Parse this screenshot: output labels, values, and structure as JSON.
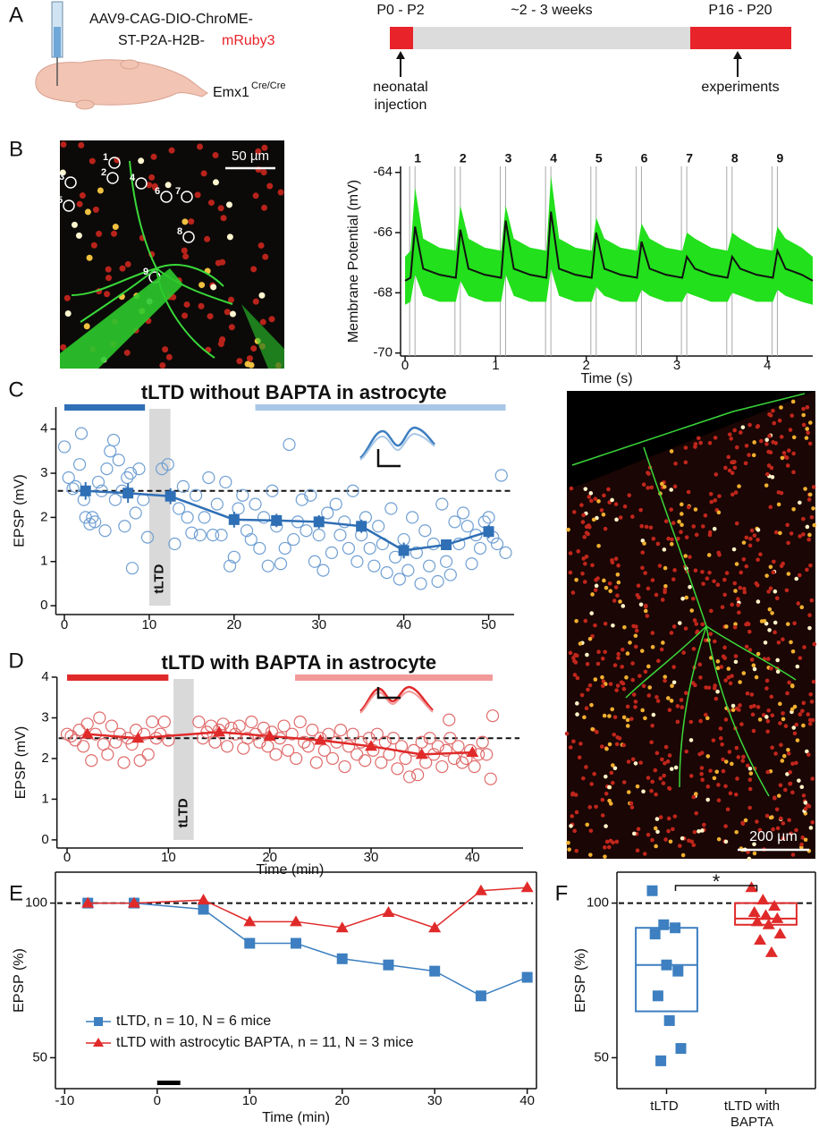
{
  "panel_labels": [
    "A",
    "B",
    "C",
    "D",
    "E",
    "F"
  ],
  "panel_a": {
    "virus_lines": [
      "AAV9-CAG-DIO-ChroME-",
      "ST-P2A-H2B-"
    ],
    "reporter": "mRuby3",
    "mouse_line": "Emx1",
    "mouse_line_sup": "Cre/Cre",
    "timeline": [
      {
        "label": "P0 - P2",
        "color": "#e8232a"
      },
      {
        "label": "~2 - 3 weeks",
        "color": "#dcdcdc"
      },
      {
        "label": "P16 - P20",
        "color": "#e8232a"
      }
    ],
    "arrow_left": [
      "neonatal",
      "injection"
    ],
    "arrow_right": [
      "experiments"
    ]
  },
  "image_b": {
    "scale_bar": "50 µm",
    "cell_labels": [
      "1",
      "2",
      "3",
      "4",
      "5",
      "6",
      "7",
      "8",
      "9"
    ]
  },
  "image_c": {
    "scale_bar": "200 µm"
  },
  "chart_data": [
    {
      "type": "line",
      "ylabel": "Membrane Potential (mV)",
      "xlabel": "Time (s)",
      "xlim": [
        -0.05,
        4.5
      ],
      "xticks": [
        0,
        1,
        2,
        3,
        4
      ],
      "ylim": [
        -70.1,
        -63.8
      ],
      "yticks": [
        -64,
        -66,
        -68,
        -70
      ],
      "x": [
        0,
        0.06,
        0.11,
        0.2,
        0.38,
        0.56,
        0.61,
        0.7,
        0.88,
        1.06,
        1.11,
        1.2,
        1.38,
        1.56,
        1.61,
        1.7,
        1.88,
        2.06,
        2.11,
        2.2,
        2.38,
        2.56,
        2.61,
        2.7,
        2.88,
        3.06,
        3.11,
        3.2,
        3.38,
        3.56,
        3.61,
        3.7,
        3.88,
        4.06,
        4.11,
        4.2,
        4.38,
        4.5
      ],
      "series": [
        {
          "color": "#22e01c",
          "upper": [
            -66.8,
            -66.6,
            -64.5,
            -66.2,
            -66.5,
            -66.6,
            -65.1,
            -66.2,
            -66.5,
            -66.6,
            -65.1,
            -66.2,
            -66.5,
            -66.6,
            -64.1,
            -66.2,
            -66.5,
            -66.6,
            -65.5,
            -66.2,
            -66.5,
            -66.6,
            -65.7,
            -66.2,
            -66.5,
            -66.6,
            -66.0,
            -66.2,
            -66.5,
            -66.6,
            -66.0,
            -66.2,
            -66.5,
            -66.6,
            -65.8,
            -66.2,
            -66.5,
            -66.8
          ],
          "lower": [
            -68.4,
            -68.3,
            -67.4,
            -68.1,
            -68.3,
            -68.3,
            -67.6,
            -68.1,
            -68.3,
            -68.3,
            -67.4,
            -68.1,
            -68.3,
            -68.3,
            -67.2,
            -68.1,
            -68.3,
            -68.3,
            -67.8,
            -68.1,
            -68.3,
            -68.3,
            -67.9,
            -68.1,
            -68.3,
            -68.3,
            -68.0,
            -68.1,
            -68.3,
            -68.3,
            -68.0,
            -68.1,
            -68.3,
            -68.3,
            -67.9,
            -68.1,
            -68.3,
            -68.4
          ]
        },
        {
          "color": "#111111",
          "values": [
            -67.6,
            -67.5,
            -65.8,
            -67.2,
            -67.4,
            -67.5,
            -65.9,
            -67.2,
            -67.4,
            -67.5,
            -65.6,
            -67.2,
            -67.4,
            -67.5,
            -65.3,
            -67.2,
            -67.4,
            -67.5,
            -66.0,
            -67.2,
            -67.4,
            -67.5,
            -66.3,
            -67.2,
            -67.4,
            -67.5,
            -66.8,
            -67.2,
            -67.4,
            -67.5,
            -66.8,
            -67.2,
            -67.4,
            -67.5,
            -66.6,
            -67.2,
            -67.4,
            -67.6
          ]
        }
      ],
      "annotations": [
        {
          "x": 0.08,
          "label": "1"
        },
        {
          "x": 0.58,
          "label": "2"
        },
        {
          "x": 1.08,
          "label": "3"
        },
        {
          "x": 1.58,
          "label": "4"
        },
        {
          "x": 2.08,
          "label": "5"
        },
        {
          "x": 2.58,
          "label": "6"
        },
        {
          "x": 3.08,
          "label": "7"
        },
        {
          "x": 3.58,
          "label": "8"
        },
        {
          "x": 4.08,
          "label": "9"
        }
      ]
    },
    {
      "type": "scatter",
      "title": "tLTD without BAPTA in astrocyte",
      "ylabel": "EPSP (mV)",
      "xlim": [
        -1,
        53
      ],
      "xticks": [
        0,
        10,
        20,
        30,
        40,
        50
      ],
      "ylim": [
        -0.2,
        4.5
      ],
      "yticks": [
        0,
        1,
        2,
        3,
        4
      ],
      "hline": 2.6,
      "bars": [
        {
          "x": [
            0,
            9.5
          ],
          "color": "#2f6fb5"
        },
        {
          "x": [
            22.5,
            52
          ],
          "color": "#a9c7e6"
        }
      ],
      "shade": {
        "x": [
          10,
          12.5
        ],
        "label": "tLTD"
      },
      "series": [
        {
          "color": "#6f9fd3",
          "marker": "circle",
          "x": [
            0,
            0.5,
            1,
            1.3,
            1.8,
            2,
            2.3,
            2.5,
            3,
            3.3,
            3.6,
            4,
            4.4,
            4.8,
            5,
            5.4,
            5.8,
            6,
            6.4,
            6.8,
            7.1,
            7.4,
            7.8,
            8,
            8.4,
            8.8,
            9.3,
            9.8,
            11.5,
            12.2,
            13,
            13.5,
            14,
            14.5,
            15,
            15.5,
            16,
            16.5,
            17,
            17.5,
            18,
            18.5,
            19,
            19.5,
            20,
            20.5,
            21,
            21.5,
            22,
            22.5,
            23,
            23.5,
            24,
            24.5,
            25,
            25.5,
            26,
            26.5,
            27,
            27.5,
            28,
            28.5,
            29,
            29.5,
            30,
            30.5,
            31,
            31.5,
            32,
            32.5,
            33,
            33.5,
            34,
            34.5,
            35,
            35.5,
            36,
            36.5,
            37,
            37.5,
            38,
            38.5,
            39,
            39.5,
            40,
            40.5,
            41,
            41.5,
            42,
            42.5,
            43,
            43.5,
            44,
            44.5,
            45,
            45.5,
            46,
            46.5,
            47,
            47.5,
            48,
            48.5,
            49,
            49.5,
            50,
            50.5,
            51,
            51.5,
            52
          ],
          "values": [
            3.6,
            2.9,
            2.65,
            2.7,
            3.2,
            3.9,
            2.4,
            2.0,
            1.85,
            2.0,
            1.9,
            2.8,
            2.6,
            1.7,
            3.1,
            3.5,
            3.75,
            2.4,
            3.3,
            2.6,
            1.8,
            2.9,
            3.0,
            0.85,
            2.1,
            3.1,
            2.4,
            1.55,
            3.1,
            3.2,
            1.4,
            2.2,
            2.7,
            2.0,
            1.65,
            2.5,
            1.6,
            2.0,
            2.9,
            1.6,
            2.3,
            1.6,
            2.8,
            0.9,
            1.1,
            2.2,
            2.5,
            1.7,
            1.5,
            2.3,
            1.3,
            2.0,
            0.9,
            2.6,
            1.8,
            0.95,
            1.3,
            3.65,
            1.5,
            1.9,
            2.4,
            1.7,
            2.5,
            1.0,
            1.6,
            0.8,
            2.1,
            1.2,
            2.3,
            1.6,
            1.9,
            1.3,
            2.6,
            1.0,
            1.6,
            2.0,
            1.3,
            0.9,
            1.8,
            1.4,
            0.75,
            2.2,
            1.1,
            0.6,
            1.5,
            0.8,
            2.0,
            1.2,
            0.5,
            1.7,
            0.9,
            1.4,
            0.55,
            2.3,
            1.0,
            0.7,
            1.9,
            1.4,
            2.1,
            1.8,
            0.95,
            1.6,
            1.3,
            1.9,
            2.0,
            1.55,
            1.4,
            2.95,
            1.2
          ]
        },
        {
          "color": "#2f6fb5",
          "marker": "square",
          "line": true,
          "x": [
            2.5,
            7.5,
            12.5,
            20,
            25,
            30,
            35,
            40,
            45,
            50
          ],
          "values": [
            2.6,
            2.55,
            2.48,
            1.95,
            1.93,
            1.9,
            1.8,
            1.25,
            1.38,
            1.68
          ],
          "errors": [
            0.2,
            0.22,
            0.18,
            0.18,
            0.15,
            0.15,
            0.15,
            0.18,
            0.12,
            0.15
          ]
        }
      ]
    },
    {
      "type": "scatter",
      "title": "tLTD with BAPTA in astrocyte",
      "ylabel": "EPSP (mV)",
      "xlabel": "Time (min)",
      "xlim": [
        -1,
        45
      ],
      "xticks": [
        0,
        10,
        20,
        30,
        40
      ],
      "ylim": [
        -0.2,
        4
      ],
      "yticks": [
        0,
        1,
        2,
        3,
        4
      ],
      "hline": 2.5,
      "bars": [
        {
          "x": [
            0,
            10
          ],
          "color": "#e02a2a"
        },
        {
          "x": [
            22.5,
            42
          ],
          "color": "#f29a9a"
        }
      ],
      "shade": {
        "x": [
          10.5,
          12.5
        ],
        "label": "tLTD"
      },
      "series": [
        {
          "color": "#e06a6a",
          "marker": "circle",
          "x": [
            0,
            0.4,
            0.8,
            1.2,
            1.6,
            2,
            2.4,
            2.8,
            3.2,
            3.6,
            4,
            4.4,
            4.8,
            5.2,
            5.6,
            6,
            6.4,
            6.8,
            7.2,
            7.6,
            8,
            8.4,
            8.8,
            9.2,
            9.6,
            10,
            13,
            13.4,
            13.8,
            14.2,
            14.6,
            15,
            15.4,
            15.8,
            16.2,
            16.6,
            17,
            17.4,
            17.8,
            18.2,
            18.6,
            19,
            19.4,
            19.8,
            20.2,
            20.6,
            21,
            21.4,
            21.8,
            22.2,
            22.6,
            23,
            23.4,
            23.8,
            24.2,
            24.6,
            25,
            25.4,
            25.8,
            26.2,
            26.6,
            27,
            27.4,
            27.8,
            28.2,
            28.6,
            29,
            29.4,
            29.8,
            30.2,
            30.6,
            31,
            31.4,
            31.8,
            32.2,
            32.6,
            33,
            33.4,
            33.8,
            34.2,
            34.6,
            35,
            35.4,
            35.8,
            36.2,
            36.6,
            37,
            37.4,
            37.8,
            38.2,
            38.6,
            39,
            39.4,
            39.8,
            40.2,
            40.6,
            41,
            41.4,
            41.8,
            42,
            37.7
          ],
          "values": [
            2.6,
            2.55,
            2.45,
            2.7,
            2.3,
            2.85,
            1.95,
            2.6,
            3.0,
            2.35,
            2.1,
            2.8,
            2.4,
            2.6,
            1.9,
            2.5,
            2.35,
            2.7,
            1.95,
            2.6,
            2.1,
            2.9,
            2.5,
            2.6,
            2.9,
            2.45,
            2.9,
            2.5,
            2.65,
            2.8,
            2.4,
            2.7,
            2.85,
            2.3,
            2.75,
            2.6,
            2.8,
            2.25,
            2.5,
            2.9,
            2.6,
            2.4,
            2.75,
            2.3,
            2.65,
            2.1,
            2.5,
            2.8,
            2.2,
            2.6,
            2.0,
            2.9,
            2.4,
            2.3,
            2.7,
            1.9,
            2.5,
            2.2,
            2.6,
            2.0,
            2.4,
            2.7,
            1.8,
            2.3,
            2.6,
            2.1,
            2.4,
            1.95,
            2.5,
            2.2,
            2.6,
            1.9,
            2.4,
            2.1,
            2.5,
            1.75,
            2.3,
            2.0,
            1.55,
            2.2,
            1.6,
            2.4,
            1.9,
            2.5,
            2.1,
            2.3,
            1.8,
            2.2,
            2.5,
            2.0,
            2.3,
            1.9,
            2.0,
            2.2,
            1.8,
            2.1,
            2.4,
            2.1,
            1.5,
            3.05,
            2.95
          ]
        },
        {
          "color": "#e02a2a",
          "marker": "triangle",
          "line": true,
          "x": [
            2,
            7,
            15,
            20,
            25,
            30,
            35,
            40
          ],
          "values": [
            2.6,
            2.5,
            2.65,
            2.55,
            2.45,
            2.3,
            2.1,
            2.15
          ]
        }
      ]
    },
    {
      "type": "line",
      "ylabel": "EPSP (%)",
      "xlabel": "Time (min)",
      "xlim": [
        -11,
        41
      ],
      "xticks": [
        -10,
        0,
        10,
        20,
        30,
        40
      ],
      "ylim": [
        40,
        110
      ],
      "yticks": [
        50,
        100
      ],
      "hline": 100,
      "frame": true,
      "bar": {
        "x": [
          0,
          2.5
        ]
      },
      "x": [
        -7.5,
        -2.5,
        5,
        10,
        15,
        20,
        25,
        30,
        35,
        40
      ],
      "series": [
        {
          "name": "tLTD, n = 10, N = 6 mice",
          "color": "#3d7fc0",
          "marker": "square",
          "values": [
            100,
            100,
            98,
            87,
            87,
            82,
            80,
            78,
            70,
            76
          ]
        },
        {
          "name": "tLTD with astrocytic BAPTA, n = 11, N = 3 mice",
          "color": "#e02a2a",
          "marker": "triangle",
          "values": [
            100,
            100,
            101,
            94,
            94,
            92,
            97,
            92,
            104,
            105
          ]
        }
      ]
    },
    {
      "type": "box",
      "ylabel": "EPSP (%)",
      "ylim": [
        40,
        110
      ],
      "yticks": [
        50,
        100
      ],
      "hline": 100,
      "frame": true,
      "significance": "*",
      "categories": [
        "tLTD",
        "tLTD with BAPTA"
      ],
      "boxes": [
        {
          "color": "#3d7fc0",
          "marker": "square",
          "q1": 65,
          "median": 80,
          "q3": 92,
          "points": [
            104,
            93,
            92,
            90,
            80,
            78,
            70,
            62,
            53,
            49
          ]
        },
        {
          "color": "#e02a2a",
          "marker": "triangle",
          "q1": 93,
          "median": 95,
          "q3": 100,
          "points": [
            105,
            101,
            99,
            97,
            96,
            95,
            94,
            93,
            90,
            88,
            84
          ]
        }
      ]
    }
  ]
}
